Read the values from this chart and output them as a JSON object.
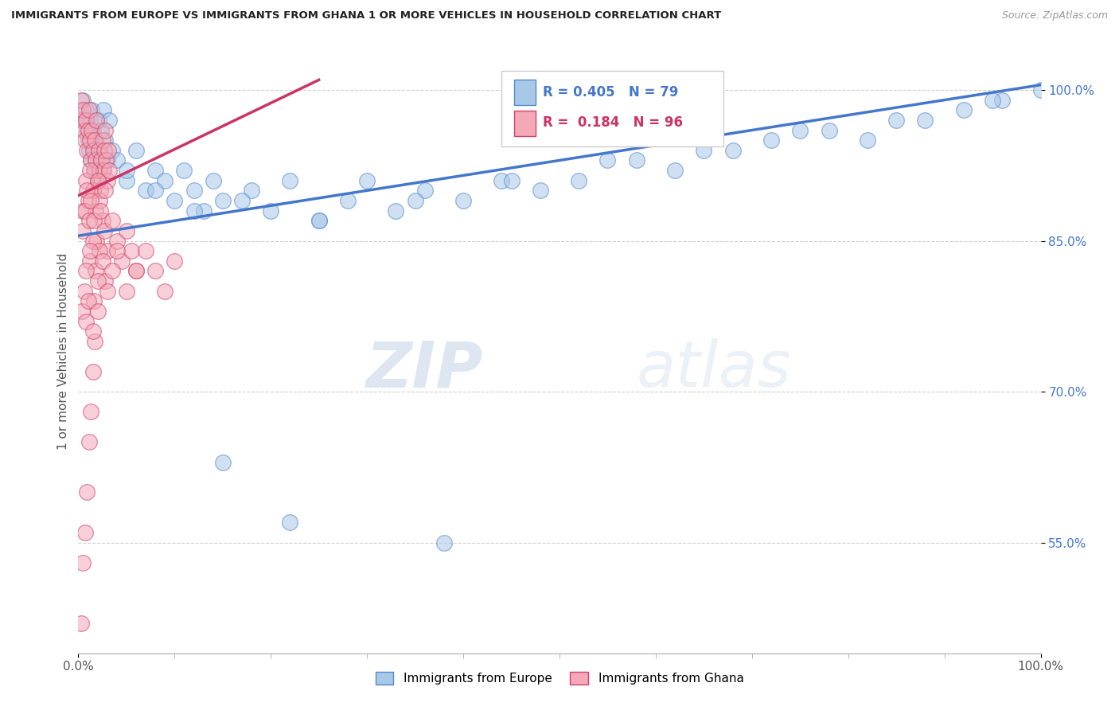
{
  "title": "IMMIGRANTS FROM EUROPE VS IMMIGRANTS FROM GHANA 1 OR MORE VEHICLES IN HOUSEHOLD CORRELATION CHART",
  "source": "Source: ZipAtlas.com",
  "ylabel": "1 or more Vehicles in Household",
  "xlim": [
    0.0,
    1.0
  ],
  "ylim": [
    0.44,
    1.04
  ],
  "yticks": [
    0.55,
    0.7,
    0.85,
    1.0
  ],
  "ytick_labels_right": [
    "55.0%",
    "70.0%",
    "85.0%",
    "100.0%"
  ],
  "xtick_labels": [
    "0.0%",
    "100.0%"
  ],
  "r_europe": 0.405,
  "n_europe": 79,
  "r_ghana": 0.184,
  "n_ghana": 96,
  "color_europe": "#A8C8E8",
  "color_ghana": "#F4A8B8",
  "edge_europe": "#5588CC",
  "edge_ghana": "#CC4466",
  "line_europe": "#4477CC",
  "line_ghana": "#CC3366",
  "bg": "#FFFFFF",
  "grid_color": "#BBBBBB",
  "legend_label_europe": "Immigrants from Europe",
  "legend_label_ghana": "Immigrants from Ghana",
  "watermark_zip": "ZIP",
  "watermark_atlas": "atlas",
  "eu_trend_x0": 0.0,
  "eu_trend_y0": 0.855,
  "eu_trend_x1": 1.0,
  "eu_trend_y1": 1.005,
  "gh_trend_x0": 0.0,
  "gh_trend_y0": 0.895,
  "gh_trend_x1": 0.25,
  "gh_trend_y1": 1.01
}
